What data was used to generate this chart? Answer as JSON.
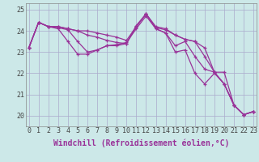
{
  "xlabel": "Windchill (Refroidissement éolien,°C)",
  "bg_color": "#cce8e8",
  "grid_color": "#aaaacc",
  "line_color": "#993399",
  "series": [
    [
      23.2,
      24.4,
      24.2,
      24.2,
      24.1,
      24.0,
      23.8,
      23.7,
      23.55,
      23.45,
      23.4,
      24.25,
      24.8,
      24.2,
      24.1,
      23.8,
      23.6,
      23.5,
      23.2,
      22.05,
      22.05,
      20.5,
      20.05,
      20.2
    ],
    [
      23.2,
      24.4,
      24.2,
      24.2,
      24.1,
      24.0,
      24.0,
      23.9,
      23.8,
      23.7,
      23.55,
      24.2,
      24.8,
      24.15,
      24.05,
      23.8,
      23.6,
      23.5,
      22.8,
      22.05,
      21.5,
      20.5,
      20.05,
      20.2
    ],
    [
      23.2,
      24.4,
      24.2,
      24.15,
      24.05,
      23.5,
      23.0,
      23.1,
      23.3,
      23.35,
      23.45,
      24.1,
      24.7,
      24.1,
      23.9,
      23.3,
      23.5,
      22.8,
      22.2,
      22.05,
      21.5,
      20.5,
      20.05,
      20.2
    ],
    [
      23.2,
      24.4,
      24.2,
      24.1,
      23.5,
      22.9,
      22.9,
      23.1,
      23.3,
      23.3,
      23.4,
      24.2,
      24.8,
      24.1,
      23.9,
      23.0,
      23.1,
      22.0,
      21.5,
      22.0,
      21.5,
      20.5,
      20.05,
      20.2
    ]
  ],
  "xlim": [
    -0.3,
    23.3
  ],
  "ylim": [
    19.5,
    25.3
  ],
  "yticks": [
    20,
    21,
    22,
    23,
    24,
    25
  ],
  "xticks": [
    0,
    1,
    2,
    3,
    4,
    5,
    6,
    7,
    8,
    9,
    10,
    11,
    12,
    13,
    14,
    15,
    16,
    17,
    18,
    19,
    20,
    21,
    22,
    23
  ],
  "xtick_labels": [
    "0",
    "1",
    "2",
    "3",
    "4",
    "5",
    "6",
    "7",
    "8",
    "9",
    "10",
    "11",
    "12",
    "13",
    "14",
    "15",
    "16",
    "17",
    "18",
    "19",
    "20",
    "21",
    "22",
    "23"
  ],
  "marker": "+",
  "markersize": 3.5,
  "linewidth": 0.9,
  "fontsize_tick": 6,
  "fontsize_xlabel": 7
}
